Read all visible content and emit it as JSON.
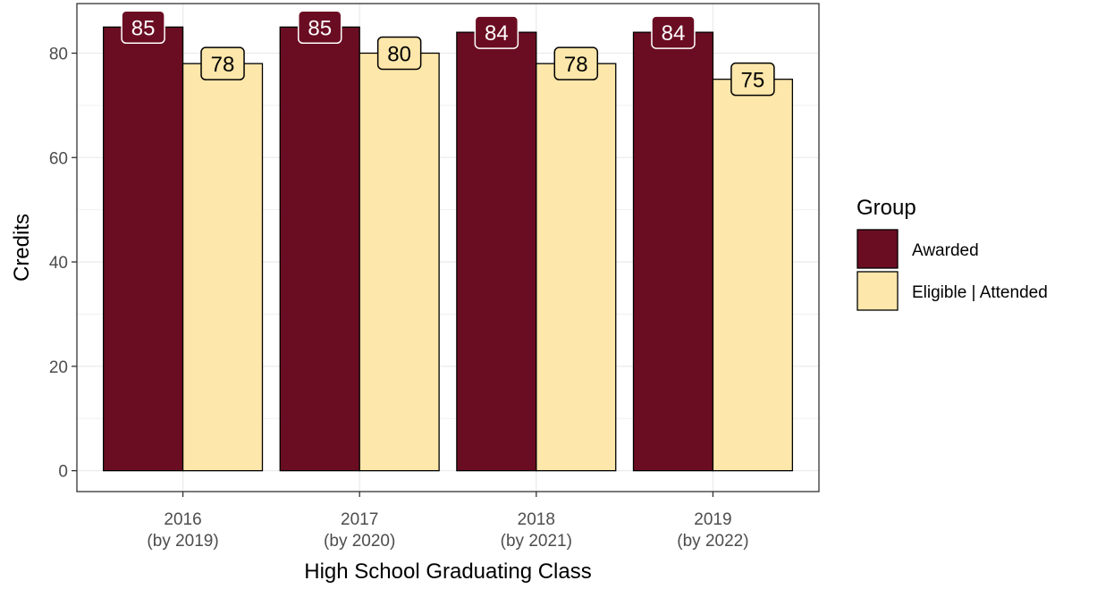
{
  "chart_data": {
    "type": "bar",
    "title": "",
    "xlabel": "High School Graduating Class",
    "ylabel": "Credits",
    "categories": [
      {
        "line1": "2016",
        "line2": "(by 2019)"
      },
      {
        "line1": "2017",
        "line2": "(by 2020)"
      },
      {
        "line1": "2018",
        "line2": "(by 2021)"
      },
      {
        "line1": "2019",
        "line2": "(by 2022)"
      }
    ],
    "series": [
      {
        "name": "Awarded",
        "color": "#6b0d22",
        "label_text_color": "#ffffff",
        "values": [
          85,
          85,
          84,
          84
        ]
      },
      {
        "name": "Eligible | Attended",
        "color": "#fde7aa",
        "label_text_color": "#000000",
        "values": [
          78,
          80,
          78,
          75
        ]
      }
    ],
    "ylim": [
      -4,
      89.5
    ],
    "yticks": [
      0,
      20,
      40,
      60,
      80
    ],
    "grid": true,
    "legend": {
      "title": "Group",
      "position": "right"
    }
  }
}
